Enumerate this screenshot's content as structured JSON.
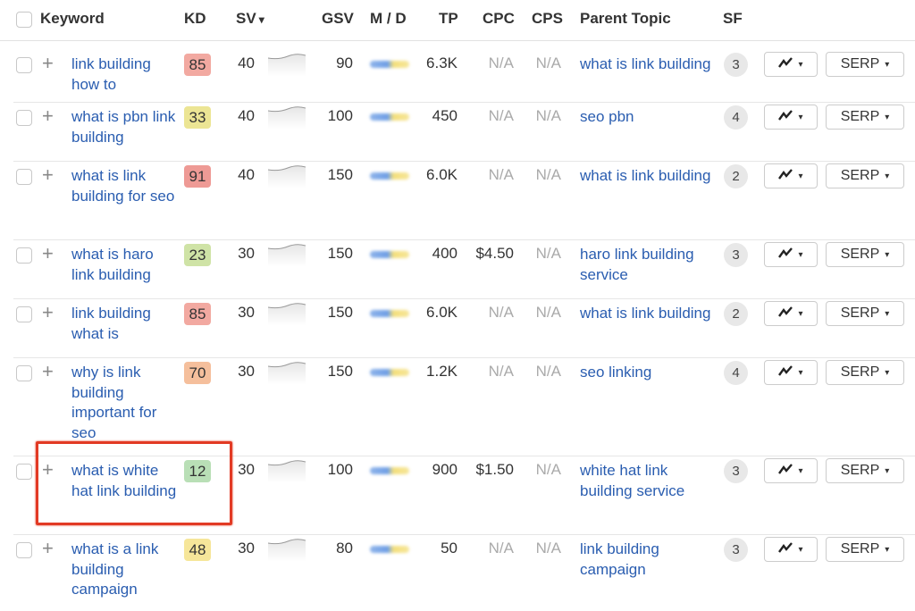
{
  "header": {
    "keyword": "Keyword",
    "kd": "KD",
    "sv": "SV",
    "sv_sort": "▾",
    "gsv": "GSV",
    "md": "M / D",
    "tp": "TP",
    "cpc": "CPC",
    "cps": "CPS",
    "parent_topic": "Parent Topic",
    "sf": "SF"
  },
  "buttons": {
    "serp": "SERP",
    "caret": "▾"
  },
  "colors": {
    "link": "#2a5db0",
    "highlight": "#e23a24",
    "kd_red": "#f2a9a1",
    "kd_orange": "#f5bf9c",
    "kd_yellow": "#f6e6a0",
    "kd_lightgreen": "#d3e4a9",
    "kd_green": "#b9dfb6"
  },
  "rows": [
    {
      "keyword": "link building how to",
      "kd": "85",
      "kd_color": "#f2a9a1",
      "sv": "40",
      "gsv": "90",
      "tp": "6.3K",
      "cpc": "N/A",
      "cps": "N/A",
      "parent_topic": "what is link building",
      "sf": "3"
    },
    {
      "keyword": "what is pbn link building",
      "kd": "33",
      "kd_color": "#ece594",
      "sv": "40",
      "gsv": "100",
      "tp": "450",
      "cpc": "N/A",
      "cps": "N/A",
      "parent_topic": "seo pbn",
      "sf": "4"
    },
    {
      "keyword": "what is link building for seo",
      "kd": "91",
      "kd_color": "#ee9a95",
      "sv": "40",
      "gsv": "150",
      "tp": "6.0K",
      "cpc": "N/A",
      "cps": "N/A",
      "parent_topic": "what is link building",
      "sf": "2"
    },
    {
      "keyword": "what is haro link building",
      "kd": "23",
      "kd_color": "#cfe3a6",
      "sv": "30",
      "gsv": "150",
      "tp": "400",
      "cpc": "$4.50",
      "cps": "N/A",
      "parent_topic": "haro link building service",
      "sf": "3"
    },
    {
      "keyword": "link building what is",
      "kd": "85",
      "kd_color": "#f2a9a1",
      "sv": "30",
      "gsv": "150",
      "tp": "6.0K",
      "cpc": "N/A",
      "cps": "N/A",
      "parent_topic": "what is link building",
      "sf": "2"
    },
    {
      "keyword": "why is link building important for seo",
      "kd": "70",
      "kd_color": "#f5bf9c",
      "sv": "30",
      "gsv": "150",
      "tp": "1.2K",
      "cpc": "N/A",
      "cps": "N/A",
      "parent_topic": "seo linking",
      "sf": "4"
    },
    {
      "keyword": "what is white hat link building",
      "kd": "12",
      "kd_color": "#b9dfb6",
      "sv": "30",
      "gsv": "100",
      "tp": "900",
      "cpc": "$1.50",
      "cps": "N/A",
      "parent_topic": "white hat link building service",
      "sf": "3",
      "highlighted": true
    },
    {
      "keyword": "what is a link building campaign",
      "kd": "48",
      "kd_color": "#f6e69a",
      "sv": "30",
      "gsv": "80",
      "tp": "50",
      "cpc": "N/A",
      "cps": "N/A",
      "parent_topic": "link building campaign",
      "sf": "3"
    }
  ]
}
